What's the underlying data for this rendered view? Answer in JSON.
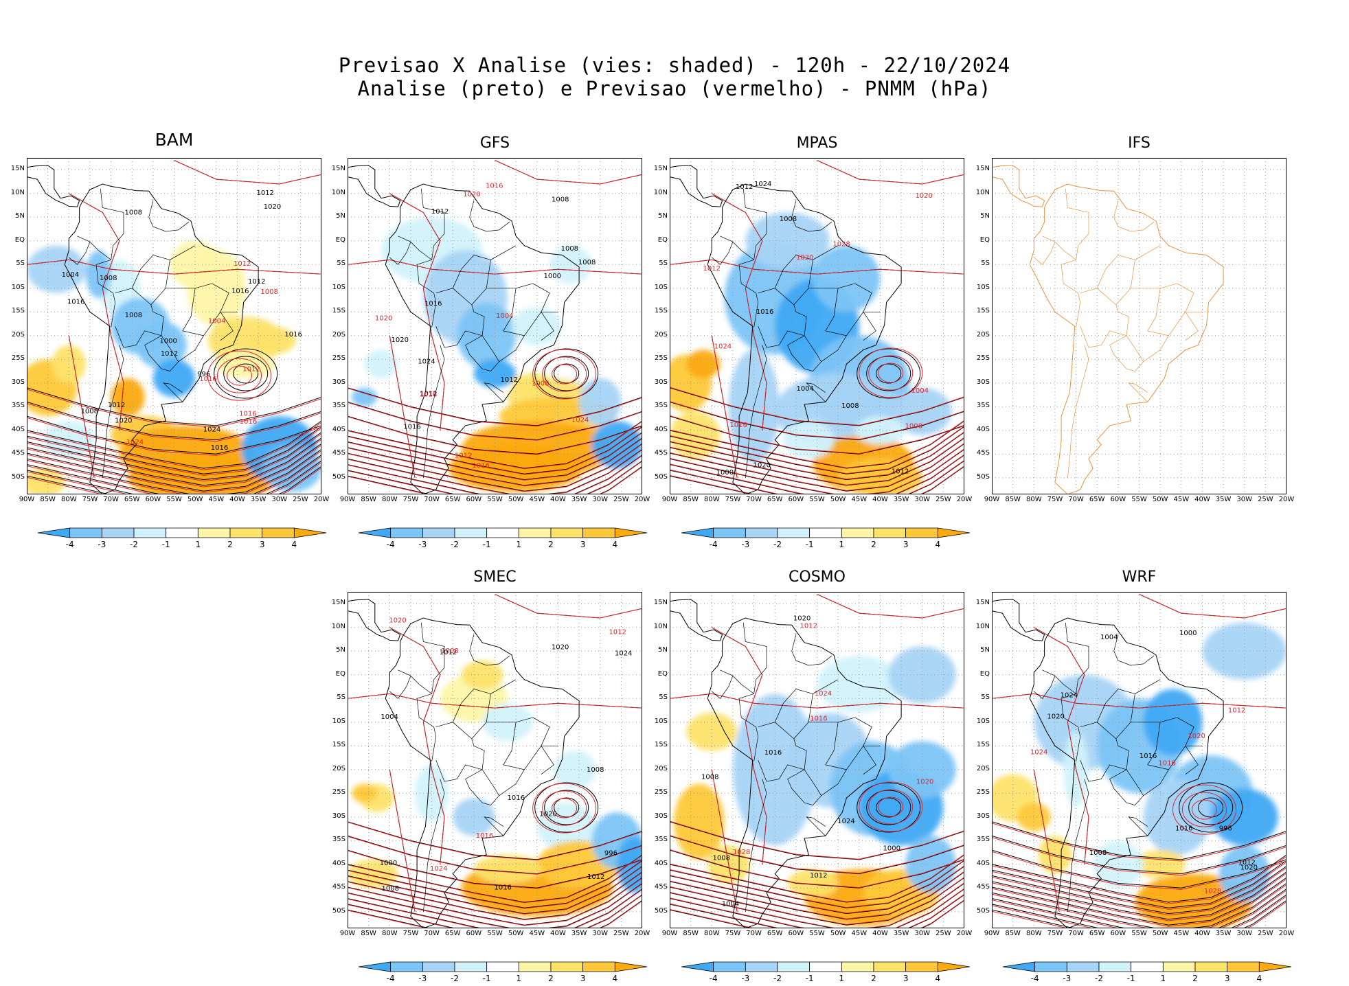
{
  "header": {
    "line1": "Previsao X Analise (vies: shaded) - 120h - 22/10/2024",
    "line2": "Analise (preto) e Previsao (vermelho) - PNMM (hPa)"
  },
  "axes": {
    "lat_labels": [
      "15N",
      "10N",
      "5N",
      "EQ",
      "5S",
      "10S",
      "15S",
      "20S",
      "25S",
      "30S",
      "35S",
      "40S",
      "45S",
      "50S"
    ],
    "lon_labels": [
      "90W",
      "85W",
      "80W",
      "75W",
      "70W",
      "65W",
      "60W",
      "55W",
      "50W",
      "45W",
      "40W",
      "35W",
      "30W",
      "25W",
      "20W"
    ]
  },
  "colorbar": {
    "labels": [
      "-4",
      "-3",
      "-2",
      "-1",
      "1",
      "2",
      "3",
      "4"
    ],
    "colors": [
      "#3fa9f5",
      "#7cc5f7",
      "#a8d4f6",
      "#d2f2fb",
      "#ffffff",
      "#fdf5a8",
      "#fde36a",
      "#fdc93a",
      "#fbaa10"
    ]
  },
  "colors": {
    "analysis_contour": "#000000",
    "forecast_contour": "#e8242a",
    "coastline_ifs": "#f0923c",
    "grid": "#9a9a9a"
  },
  "panels": [
    {
      "id": "bam",
      "title": "BAM",
      "has_data": true,
      "has_colorbar": true,
      "contour_labels_black": [
        "1016",
        "1008",
        "1012",
        "1008",
        "1012",
        "1024",
        "1016",
        "1008",
        "1012",
        "1020",
        "1008",
        "1004",
        "1000",
        "996",
        "1016",
        "1012",
        "1016",
        "1020"
      ],
      "contour_labels_red": [
        "1012",
        "1008",
        "1016",
        "1016",
        "1024",
        "1016",
        "1004",
        "1012"
      ]
    },
    {
      "id": "gfs",
      "title": "GFS",
      "has_data": true,
      "has_colorbar": true,
      "contour_labels_black": [
        "1016",
        "1008",
        "1012",
        "1008",
        "1012",
        "1016",
        "1024",
        "1012",
        "1008",
        "1000",
        "1020"
      ],
      "contour_labels_red": [
        "1016",
        "1008",
        "1004",
        "1016",
        "1020",
        "1024",
        "1020",
        "1016",
        "1012"
      ]
    },
    {
      "id": "mpas",
      "title": "MPAS",
      "has_data": true,
      "has_colorbar": true,
      "contour_labels_black": [
        "1008",
        "1012",
        "1016",
        "1008",
        "1024",
        "1012",
        "1004",
        "1000",
        "1020"
      ],
      "contour_labels_red": [
        "1016",
        "1012",
        "1004",
        "1008",
        "1020",
        "1024",
        "1020",
        "1028"
      ]
    },
    {
      "id": "ifs",
      "title": "IFS",
      "has_data": false,
      "has_colorbar": false,
      "contour_labels_black": [],
      "contour_labels_red": []
    },
    {
      "id": "smec",
      "title": "SMEC",
      "has_data": true,
      "has_colorbar": true,
      "contour_labels_black": [
        "1016",
        "1008",
        "1012",
        "1016",
        "1020",
        "1024",
        "1012",
        "1008",
        "1004",
        "1000",
        "996",
        "1020"
      ],
      "contour_labels_red": [
        "1008",
        "1024",
        "1016",
        "1012",
        "1020"
      ]
    },
    {
      "id": "cosmo",
      "title": "COSMO",
      "has_data": true,
      "has_colorbar": true,
      "contour_labels_black": [
        "1008",
        "1012",
        "1016",
        "1008",
        "1020",
        "1024",
        "1004",
        "1000"
      ],
      "contour_labels_red": [
        "1012",
        "1016",
        "1020",
        "1028",
        "1024"
      ]
    },
    {
      "id": "wrf",
      "title": "WRF",
      "has_data": true,
      "has_colorbar": true,
      "contour_labels_black": [
        "1016",
        "1012",
        "1008",
        "1016",
        "1020",
        "1024",
        "1004",
        "1000",
        "996",
        "1020"
      ],
      "contour_labels_red": [
        "1012",
        "1016",
        "1020",
        "1024",
        "1028"
      ]
    }
  ]
}
